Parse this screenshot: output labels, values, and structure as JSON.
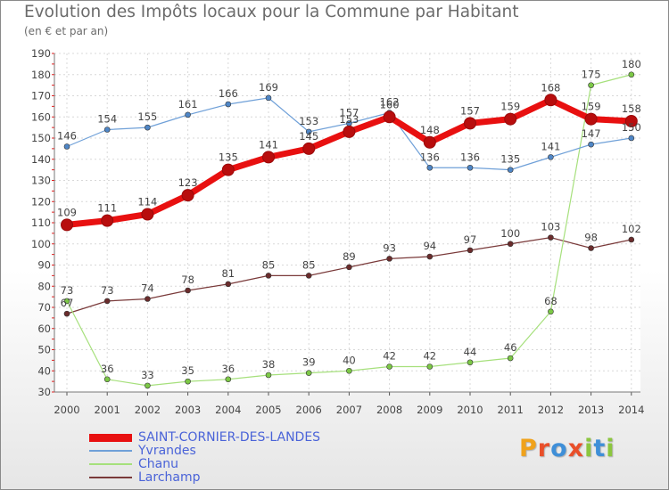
{
  "header": {
    "title": "Evolution des Impôts locaux pour la Commune par Habitant",
    "subtitle": "(en € et par an)"
  },
  "logo": {
    "text": "Proxiti",
    "letters": [
      {
        "ch": "P",
        "color": "#f0a21b"
      },
      {
        "ch": "r",
        "color": "#e94f2a"
      },
      {
        "ch": "o",
        "color": "#3f8fd8"
      },
      {
        "ch": "x",
        "color": "#e94f2a"
      },
      {
        "ch": "i",
        "color": "#8cc63f"
      },
      {
        "ch": "t",
        "color": "#3f8fd8"
      },
      {
        "ch": "i",
        "color": "#8cc63f"
      }
    ]
  },
  "chart_data": {
    "type": "line",
    "title": "Evolution des Impôts locaux pour la Commune par Habitant",
    "subtitle": "(en € et par an)",
    "xlabel": "",
    "ylabel": "",
    "x": [
      2000,
      2001,
      2002,
      2003,
      2004,
      2005,
      2006,
      2007,
      2008,
      2009,
      2010,
      2011,
      2012,
      2013,
      2014
    ],
    "ylim": [
      30,
      190
    ],
    "yticks": [
      30,
      40,
      50,
      60,
      70,
      80,
      90,
      100,
      110,
      120,
      130,
      140,
      150,
      160,
      170,
      180,
      190
    ],
    "grid": true,
    "legend_position": "bottom-left",
    "series": [
      {
        "name": "SAINT-CORNIER-DES-LANDES",
        "color": "#e81010",
        "marker_color": "#b80d0d",
        "values": [
          109,
          111,
          114,
          123,
          135,
          141,
          145,
          153,
          160,
          148,
          157,
          159,
          168,
          159,
          158
        ]
      },
      {
        "name": "Yvrandes",
        "color": "#6fa0d8",
        "marker_color": "#4f86c6",
        "values": [
          146,
          154,
          155,
          161,
          166,
          169,
          153,
          157,
          162,
          136,
          136,
          135,
          141,
          147,
          150
        ]
      },
      {
        "name": "Chanu",
        "color": "#a6e07c",
        "marker_color": "#7cc846",
        "values": [
          73,
          36,
          33,
          35,
          36,
          38,
          39,
          40,
          42,
          42,
          44,
          46,
          68,
          175,
          180
        ]
      },
      {
        "name": "Larchamp",
        "color": "#7a3a3a",
        "marker_color": "#6a2c2c",
        "values": [
          67,
          73,
          74,
          78,
          81,
          85,
          85,
          89,
          93,
          94,
          97,
          100,
          103,
          98,
          102
        ]
      }
    ]
  }
}
